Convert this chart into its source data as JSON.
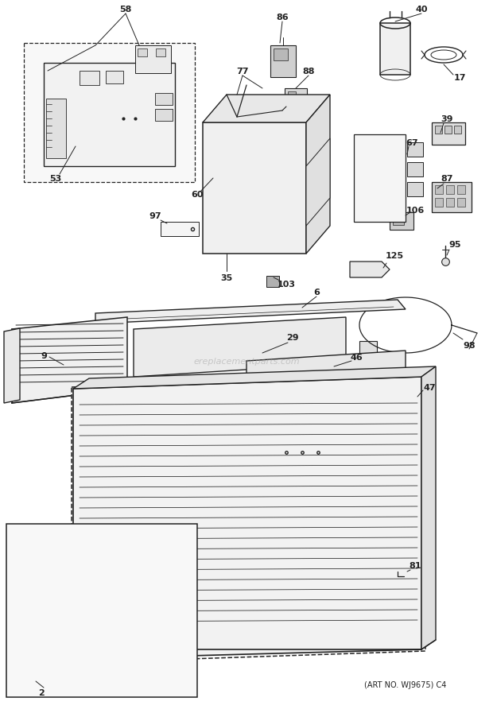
{
  "background_color": "#ffffff",
  "line_color": "#222222",
  "watermark": "ereplacementparts.com",
  "bottom_text": "(ART NO. WJ9675) C4",
  "label_fontsize": 7.5,
  "bold_fontsize": 8.0
}
